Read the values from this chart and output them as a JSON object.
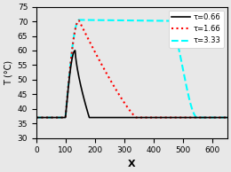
{
  "title": "",
  "xlabel": "X",
  "ylabel": "T (°C)",
  "xlim": [
    0,
    650
  ],
  "ylim": [
    30,
    75
  ],
  "yticks": [
    30,
    35,
    40,
    45,
    50,
    55,
    60,
    65,
    70,
    75
  ],
  "xticks": [
    0,
    100,
    200,
    300,
    400,
    500,
    600
  ],
  "baseline": 37.0,
  "curves": [
    {
      "label": "τ=0.66",
      "color": "black",
      "linestyle": "-",
      "linewidth": 1.2,
      "rise_start": 99,
      "peak_x": 132,
      "peak_y": 60.0,
      "fall_end": 180
    },
    {
      "label": "τ=1.66",
      "color": "red",
      "linestyle": ":",
      "linewidth": 1.5,
      "rise_start": 99,
      "peak_x": 145,
      "peak_y": 70.3,
      "fall_end": 340
    },
    {
      "label": "τ=3.33",
      "color": "cyan",
      "linestyle": "--",
      "linewidth": 1.5,
      "rise_start": 99,
      "peak_x": 145,
      "peak_y": 70.5,
      "flat_peak_end": 450,
      "fall_end": 548
    }
  ],
  "legend_loc": "upper right",
  "background_color": "#e8e8e8"
}
